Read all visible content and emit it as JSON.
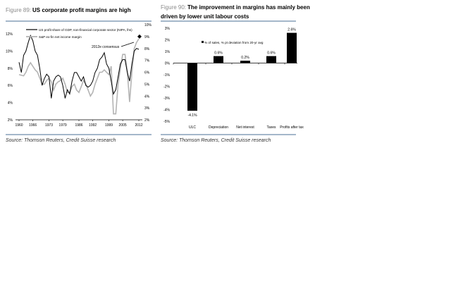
{
  "chart_data": [
    {
      "type": "line",
      "figure_label": "Figure 89:",
      "title": "US corporate profit margins are high",
      "source": "Source: Thomson Reuters, Credit Suisse research",
      "x_ticks": [
        "1960",
        "1966",
        "1973",
        "1979",
        "1986",
        "1992",
        "1999",
        "2005",
        "2012"
      ],
      "x_tick_values": [
        1960,
        1966,
        1973,
        1979,
        1986,
        1992,
        1999,
        2005,
        2012
      ],
      "xlim": [
        1960,
        2012.5
      ],
      "y_left_ticks": [
        "12%",
        "10%",
        "8%",
        "6%",
        "4%",
        "2%"
      ],
      "y_left_values": [
        12,
        10,
        8,
        6,
        4,
        2
      ],
      "ylim_left": [
        2,
        12
      ],
      "y_right_ticks": [
        "10%",
        "9%",
        "8%",
        "7%",
        "6%",
        "5%",
        "4%",
        "3%",
        "2%"
      ],
      "y_right_values": [
        10,
        9,
        8,
        7,
        6,
        5,
        4,
        3,
        2
      ],
      "ylim_right": [
        2,
        10
      ],
      "legend": "top-left",
      "annotation": "2012e consensus",
      "consensus_point": {
        "x": 2012.3,
        "y_right": 9
      },
      "series": [
        {
          "name": "US profit share of GDP, non-financial corporate sector (NIPA, lhs)",
          "axis": "left",
          "color": "#000000",
          "x": [
            1960,
            1961,
            1962,
            1963,
            1964,
            1965,
            1966,
            1967,
            1968,
            1969,
            1970,
            1971,
            1972,
            1973,
            1974,
            1975,
            1976,
            1977,
            1978,
            1979,
            1980,
            1981,
            1982,
            1983,
            1984,
            1985,
            1986,
            1987,
            1988,
            1989,
            1990,
            1991,
            1992,
            1993,
            1994,
            1995,
            1996,
            1997,
            1998,
            1999,
            2000,
            2001,
            2002,
            2003,
            2004,
            2005,
            2006,
            2007,
            2008,
            2009,
            2010,
            2011,
            2012
          ],
          "y": [
            8.7,
            7.5,
            9.5,
            10,
            11,
            11.8,
            11.2,
            10,
            9.5,
            8,
            6,
            6.8,
            7.3,
            7,
            4.5,
            6.5,
            7,
            7.2,
            7,
            6,
            4.5,
            5.5,
            5,
            6.5,
            7.5,
            7.5,
            7,
            6.5,
            7,
            6,
            5.8,
            6,
            6.5,
            7.5,
            8,
            9,
            9.3,
            9.8,
            8.5,
            8,
            6.5,
            5,
            5.5,
            7,
            8.5,
            9,
            9,
            7.5,
            6.5,
            8.5,
            10,
            10.3,
            10.2
          ]
        },
        {
          "name": "S&P ex-fin net income margin",
          "axis": "right",
          "color": "#b4b4b4",
          "x": [
            1960,
            1962,
            1963,
            1964,
            1965,
            1966,
            1967,
            1968,
            1970,
            1971,
            1972,
            1973,
            1974,
            1975,
            1976,
            1977,
            1978,
            1979,
            1980,
            1981,
            1982,
            1983,
            1984,
            1985,
            1986,
            1987,
            1988,
            1989,
            1990,
            1991,
            1992,
            1993,
            1994,
            1995,
            1996,
            1997,
            1998,
            1999,
            2000,
            2001,
            2002,
            2003,
            2004,
            2005,
            2006,
            2007,
            2008,
            2009,
            2010,
            2011,
            2012
          ],
          "y": [
            5.8,
            5.7,
            6,
            6.5,
            6.8,
            6.5,
            6.2,
            6,
            5,
            5,
            5.3,
            5.5,
            5.2,
            4.5,
            5,
            5.2,
            5.3,
            5.5,
            5,
            4.3,
            4.3,
            4.8,
            5,
            4.5,
            4.3,
            4.8,
            5.3,
            5,
            4.5,
            4,
            4.3,
            5,
            5.5,
            6,
            6,
            6.2,
            6,
            5.8,
            6.5,
            2.5,
            2.5,
            5,
            6.3,
            7.5,
            7.5,
            6,
            3.5,
            6,
            8,
            8.5,
            8.8
          ]
        }
      ]
    },
    {
      "type": "bar",
      "figure_label": "Figure 90:",
      "title": "The improvement in margins has mainly been driven by lower unit labour costs",
      "title_lines": [
        "The improvement in margins has mainly been",
        "driven by lower unit labour costs"
      ],
      "source": "Source: Thomson Reuters, Credit Suisse research",
      "legend": "% of sales, % pt deviation from 20-yr avg",
      "categories": [
        "ULC",
        "Depreciation",
        "Net interest",
        "Taxes",
        "Profits after tax"
      ],
      "values": [
        -4.1,
        0.6,
        0.2,
        0.6,
        2.6
      ],
      "data_labels": [
        "-4.1%",
        "0.6%",
        "0.2%",
        "0.6%",
        "2.6%"
      ],
      "y_ticks": [
        "3%",
        "2%",
        "1%",
        "0%",
        "-1%",
        "-2%",
        "-3%",
        "-4%",
        "-5%"
      ],
      "y_tick_values": [
        3,
        2,
        1,
        0,
        -1,
        -2,
        -3,
        -4,
        -5
      ],
      "ylim": [
        -5,
        3
      ],
      "bar_color": "#000000"
    }
  ]
}
